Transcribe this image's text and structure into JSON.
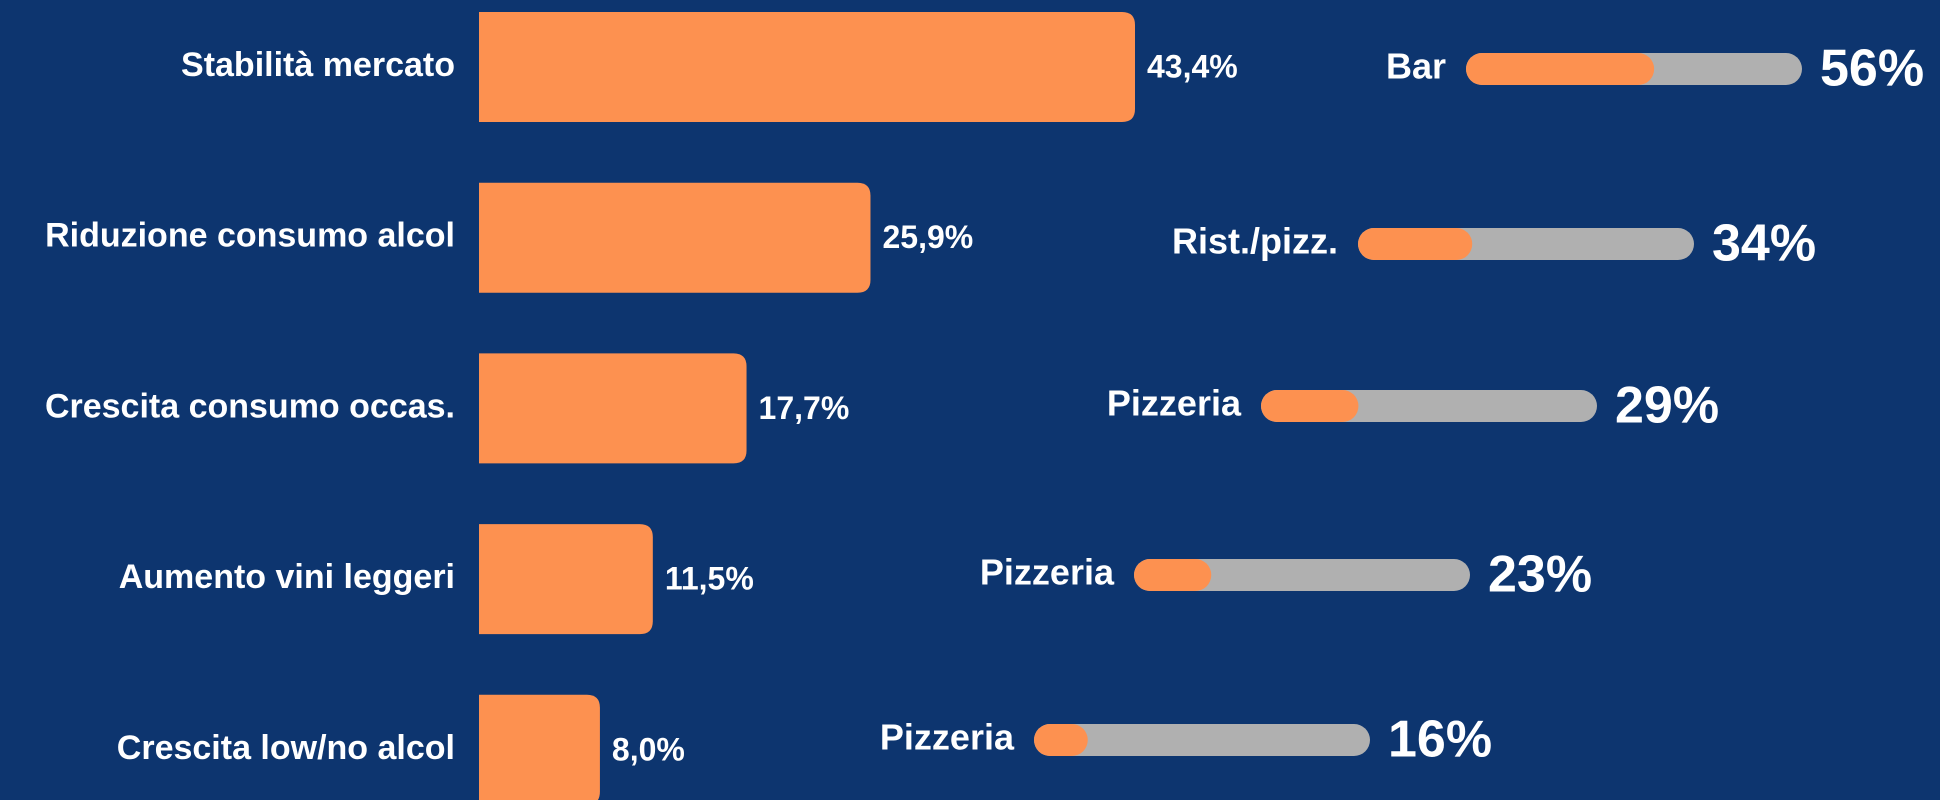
{
  "chart_data": [
    {
      "type": "bar",
      "orientation": "horizontal",
      "categories": [
        "Stabilità mercato",
        "Riduzione consumo alcol",
        "Crescita consumo occas.",
        "Aumento vini leggeri",
        "Crescita low/no alcol"
      ],
      "values": [
        43.4,
        25.9,
        17.7,
        11.5,
        8.0
      ],
      "value_labels": [
        "43,4%",
        "25,9%",
        "17,7%",
        "11,5%",
        "8,0%"
      ],
      "color": "#fd9150"
    },
    {
      "type": "progress",
      "categories": [
        "Bar",
        "Rist./pizz.",
        "Pizzeria",
        "Pizzeria",
        "Pizzeria"
      ],
      "values": [
        56,
        34,
        29,
        23,
        16
      ],
      "value_labels": [
        "56%",
        "34%",
        "29%",
        "23%",
        "16%"
      ],
      "xlim": [
        0,
        100
      ],
      "color": "#fd9150",
      "track_color": "#b0b0b0"
    }
  ]
}
